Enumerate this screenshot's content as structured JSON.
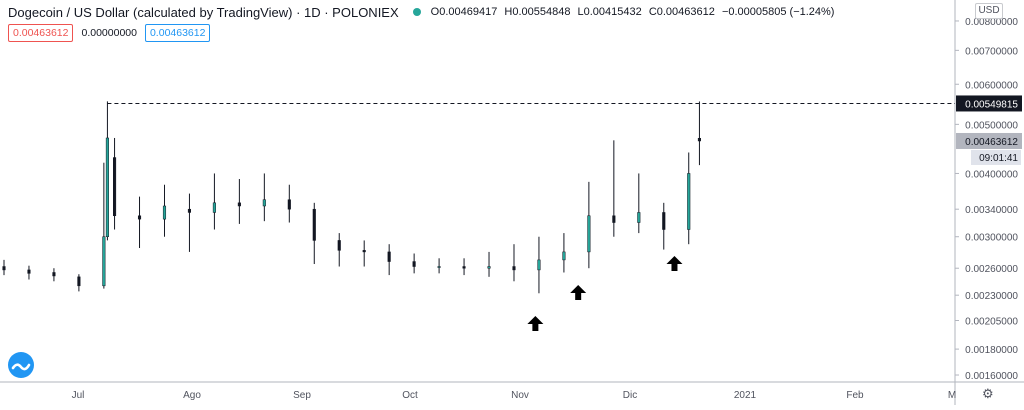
{
  "header": {
    "title": "Dogecoin / US Dollar (calculated by TradingView) · 1D · POLONIEX",
    "ohlc": {
      "open": "O0.00469417",
      "high": "H0.00554848",
      "low": "L0.00415432",
      "close": "C0.00463612",
      "change": "−0.00005805 (−1.24%)"
    }
  },
  "indicators": {
    "left_value": "0.00463612",
    "mid_value": "0.00000000",
    "right_value": "0.00463612"
  },
  "currency_button": "USD",
  "price_axis": {
    "ticks": [
      "0.00800000",
      "0.00700000",
      "0.00600000",
      "0.00500000",
      "0.00400000",
      "0.00340000",
      "0.00300000",
      "0.00260000",
      "0.00230000",
      "0.00205000",
      "0.00180000",
      "0.00160000"
    ],
    "current_price_label": "0.00549815",
    "last_price_label": "0.00463612",
    "countdown_label": "09:01:41"
  },
  "time_axis": {
    "labels": [
      "Jul",
      "Ago",
      "Sep",
      "Oct",
      "Nov",
      "Dic",
      "2021",
      "Feb",
      "M"
    ]
  },
  "colors": {
    "up": "#26a69a",
    "down": "#131722",
    "wick": "#131722",
    "dashed_line": "#131722",
    "brand_blue": "#2196f3"
  },
  "icons": {
    "logo": "tradingview-logo-icon",
    "settings": "gear-icon",
    "arrow": "up-arrow-icon"
  },
  "chart_data": {
    "type": "candlestick",
    "title": "Dogecoin / US Dollar (calculated by TradingView) · 1D · POLONIEX",
    "scale": "log",
    "ylim": [
      0.00155,
      0.0088
    ],
    "horizontal_level": 0.00549815,
    "x_start": "2020-06-09",
    "x_end": "2020-12-22",
    "annotations": [
      {
        "type": "up-arrow",
        "date": "2020-11-05"
      },
      {
        "type": "up-arrow",
        "date": "2020-11-17"
      },
      {
        "type": "up-arrow",
        "date": "2020-12-14"
      }
    ],
    "series": [
      {
        "t": "2020-06-09",
        "o": 0.00262,
        "c": 0.00258,
        "h": 0.0027,
        "l": 0.00252
      },
      {
        "t": "2020-06-16",
        "o": 0.00258,
        "c": 0.00254,
        "h": 0.00263,
        "l": 0.00247
      },
      {
        "t": "2020-06-23",
        "o": 0.00255,
        "c": 0.00251,
        "h": 0.0026,
        "l": 0.00245
      },
      {
        "t": "2020-06-30",
        "o": 0.0025,
        "c": 0.0024,
        "h": 0.00253,
        "l": 0.00234
      },
      {
        "t": "2020-07-07",
        "o": 0.0024,
        "c": 0.003,
        "h": 0.0042,
        "l": 0.00237
      },
      {
        "t": "2020-07-08",
        "o": 0.003,
        "c": 0.0047,
        "h": 0.00555,
        "l": 0.00295
      },
      {
        "t": "2020-07-10",
        "o": 0.0043,
        "c": 0.0033,
        "h": 0.0047,
        "l": 0.0031
      },
      {
        "t": "2020-07-17",
        "o": 0.0033,
        "c": 0.00325,
        "h": 0.0036,
        "l": 0.00285
      },
      {
        "t": "2020-07-24",
        "o": 0.00325,
        "c": 0.00345,
        "h": 0.0038,
        "l": 0.003
      },
      {
        "t": "2020-07-31",
        "o": 0.0034,
        "c": 0.00335,
        "h": 0.00365,
        "l": 0.0028
      },
      {
        "t": "2020-08-07",
        "o": 0.00335,
        "c": 0.0035,
        "h": 0.004,
        "l": 0.0031
      },
      {
        "t": "2020-08-14",
        "o": 0.0035,
        "c": 0.00345,
        "h": 0.0039,
        "l": 0.00318
      },
      {
        "t": "2020-08-21",
        "o": 0.00345,
        "c": 0.00355,
        "h": 0.004,
        "l": 0.00322
      },
      {
        "t": "2020-08-28",
        "o": 0.00355,
        "c": 0.0034,
        "h": 0.0038,
        "l": 0.0032
      },
      {
        "t": "2020-09-04",
        "o": 0.0034,
        "c": 0.00295,
        "h": 0.0035,
        "l": 0.00265
      },
      {
        "t": "2020-09-11",
        "o": 0.00295,
        "c": 0.00282,
        "h": 0.00305,
        "l": 0.00262
      },
      {
        "t": "2020-09-18",
        "o": 0.00282,
        "c": 0.0028,
        "h": 0.00295,
        "l": 0.00262
      },
      {
        "t": "2020-09-25",
        "o": 0.0028,
        "c": 0.00268,
        "h": 0.0029,
        "l": 0.00252
      },
      {
        "t": "2020-10-02",
        "o": 0.00268,
        "c": 0.00262,
        "h": 0.00278,
        "l": 0.00254
      },
      {
        "t": "2020-10-09",
        "o": 0.00262,
        "c": 0.00262,
        "h": 0.00272,
        "l": 0.00254
      },
      {
        "t": "2020-10-16",
        "o": 0.00262,
        "c": 0.0026,
        "h": 0.00272,
        "l": 0.00252
      },
      {
        "t": "2020-10-23",
        "o": 0.0026,
        "c": 0.00262,
        "h": 0.0028,
        "l": 0.0025
      },
      {
        "t": "2020-10-30",
        "o": 0.00262,
        "c": 0.00258,
        "h": 0.0029,
        "l": 0.00245
      },
      {
        "t": "2020-11-06",
        "o": 0.00258,
        "c": 0.0027,
        "h": 0.003,
        "l": 0.00232
      },
      {
        "t": "2020-11-13",
        "o": 0.0027,
        "c": 0.0028,
        "h": 0.00305,
        "l": 0.00255
      },
      {
        "t": "2020-11-20",
        "o": 0.0028,
        "c": 0.0033,
        "h": 0.00385,
        "l": 0.0026
      },
      {
        "t": "2020-11-27",
        "o": 0.0033,
        "c": 0.0032,
        "h": 0.00465,
        "l": 0.003
      },
      {
        "t": "2020-12-04",
        "o": 0.0032,
        "c": 0.00335,
        "h": 0.004,
        "l": 0.00305
      },
      {
        "t": "2020-12-11",
        "o": 0.00335,
        "c": 0.0031,
        "h": 0.0035,
        "l": 0.00283
      },
      {
        "t": "2020-12-18",
        "o": 0.0031,
        "c": 0.004,
        "h": 0.0044,
        "l": 0.0029
      },
      {
        "t": "2020-12-21",
        "o": 0.00469417,
        "c": 0.00463612,
        "h": 0.00554848,
        "l": 0.00415432
      }
    ]
  }
}
